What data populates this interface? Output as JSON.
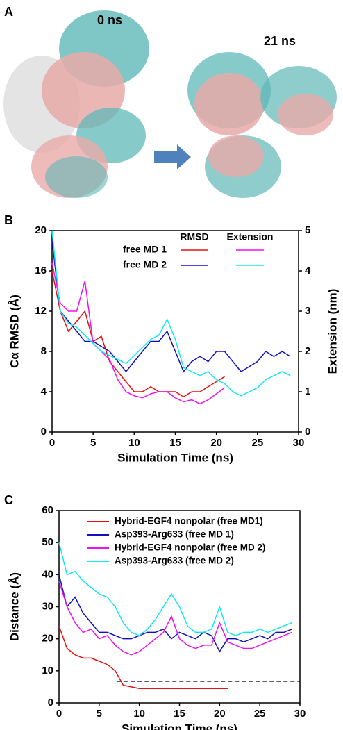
{
  "panel_a": {
    "label": "A",
    "left_caption": "0 ns",
    "right_caption": "21 ns"
  },
  "chart_data": [
    {
      "type": "line",
      "panel_label": "B",
      "x_label": "Simulation Time (ns)",
      "y_label": "Cα RMSD (Å)",
      "y2_label": "Extension (nm)",
      "xlim": [
        0,
        30
      ],
      "xticks": [
        0,
        5,
        10,
        15,
        20,
        25,
        30
      ],
      "ylim": [
        0,
        20
      ],
      "yticks": [
        0,
        4,
        8,
        12,
        16,
        20
      ],
      "y2lim": [
        0,
        5
      ],
      "y2ticks": [
        0,
        1,
        2,
        3,
        4,
        5
      ],
      "legend": {
        "columns": [
          "RMSD",
          "Extension"
        ],
        "rows": [
          "free MD 1",
          "free MD 2"
        ]
      },
      "series": [
        {
          "color": "#e81010",
          "x": [
            0,
            1,
            2,
            3,
            4,
            5,
            6,
            7,
            8,
            9,
            10,
            11,
            12,
            13,
            14,
            15,
            16,
            17,
            18,
            19,
            20,
            21
          ],
          "values": [
            16,
            12,
            10,
            11,
            12,
            9,
            9.5,
            7,
            6,
            5,
            4,
            4,
            4.5,
            4,
            4,
            4,
            3.5,
            4,
            4,
            4.5,
            5,
            5.5
          ]
        },
        {
          "color": "#1010c0",
          "x": [
            0,
            1,
            2,
            3,
            4,
            5,
            6,
            7,
            8,
            9,
            10,
            11,
            12,
            13,
            14,
            15,
            16,
            17,
            18,
            19,
            20,
            21,
            22,
            23,
            24,
            25,
            26,
            27,
            28,
            29
          ],
          "values": [
            19,
            12,
            11,
            10,
            9,
            9,
            8.5,
            8,
            7,
            6,
            7,
            8,
            9,
            9,
            10,
            8,
            6,
            7,
            7.5,
            7,
            8,
            8,
            7,
            6,
            6.5,
            7,
            8,
            7.5,
            8,
            7.5
          ]
        },
        {
          "color": "#f010f0",
          "axis": "y2",
          "x": [
            0,
            1,
            2,
            3,
            4,
            5,
            6,
            7,
            8,
            9,
            10,
            11,
            12,
            13,
            14,
            15,
            16,
            17,
            18,
            19,
            20,
            21
          ],
          "values": [
            4.2,
            3.2,
            3.0,
            3.0,
            3.75,
            2.2,
            2.0,
            1.8,
            1.3,
            1.0,
            0.9,
            0.85,
            0.95,
            1.0,
            1.0,
            0.85,
            0.75,
            0.8,
            0.7,
            0.8,
            0.95,
            1.1
          ]
        },
        {
          "color": "#10e8f0",
          "axis": "y2",
          "x": [
            0,
            1,
            2,
            3,
            4,
            5,
            6,
            7,
            8,
            9,
            10,
            11,
            12,
            13,
            14,
            15,
            16,
            17,
            18,
            19,
            20,
            21,
            22,
            23,
            24,
            25,
            26,
            27,
            28,
            29
          ],
          "values": [
            5.0,
            3.0,
            2.7,
            2.6,
            2.4,
            2.2,
            2.0,
            1.9,
            1.8,
            1.7,
            1.9,
            2.1,
            2.3,
            2.4,
            2.8,
            2.3,
            1.6,
            1.5,
            1.4,
            1.5,
            1.3,
            1.2,
            1.0,
            0.9,
            1.0,
            1.1,
            1.3,
            1.4,
            1.5,
            1.4
          ]
        }
      ]
    },
    {
      "type": "line",
      "panel_label": "C",
      "x_label": "Simulation Time (ns)",
      "y_label": "Distance (Å)",
      "xlim": [
        0,
        30
      ],
      "xticks": [
        0,
        5,
        10,
        15,
        20,
        25,
        30
      ],
      "ylim": [
        0,
        60
      ],
      "yticks": [
        0,
        10,
        20,
        30,
        40,
        50,
        60
      ],
      "reference_lines": [
        6.7,
        4
      ],
      "series": [
        {
          "name": "Hybrid-EGF4 nonpolar (free MD1)",
          "color": "#e81010",
          "x": [
            0,
            1,
            2,
            3,
            4,
            5,
            6,
            7,
            8,
            9,
            10,
            11,
            12,
            13,
            14,
            15,
            16,
            17,
            18,
            19,
            20,
            21
          ],
          "values": [
            24,
            17,
            15,
            14,
            14,
            13,
            12,
            10,
            5.5,
            5,
            4.5,
            4.5,
            4.5,
            4.5,
            4.5,
            4.5,
            4.5,
            4.5,
            4.5,
            4.5,
            4.5,
            4.5
          ]
        },
        {
          "name": "Asp393-Arg633 (free MD 1)",
          "color": "#1010c0",
          "x": [
            0,
            1,
            2,
            3,
            4,
            5,
            6,
            7,
            8,
            9,
            10,
            11,
            12,
            13,
            14,
            15,
            16,
            17,
            18,
            19,
            20,
            21,
            22,
            23,
            24,
            25,
            26,
            27,
            28,
            29
          ],
          "values": [
            40,
            30,
            33,
            28,
            25,
            22,
            22,
            21,
            20,
            20,
            21,
            22,
            22,
            23,
            20,
            22,
            21,
            20,
            22,
            21,
            16,
            20,
            20,
            19,
            20,
            21,
            20,
            22,
            22,
            23
          ]
        },
        {
          "name": "Hybrid-EGF4 nonpolar (free MD 2)",
          "color": "#f010f0",
          "x": [
            0,
            1,
            2,
            3,
            4,
            5,
            6,
            7,
            8,
            9,
            10,
            11,
            12,
            13,
            14,
            15,
            16,
            17,
            18,
            19,
            20,
            21,
            22,
            23,
            24,
            25,
            26,
            27,
            28,
            29
          ],
          "values": [
            38,
            30,
            25,
            22,
            23,
            20,
            21,
            18,
            16,
            15,
            16,
            18,
            20,
            22,
            27,
            20,
            18,
            17,
            18,
            18,
            25,
            19,
            18,
            17,
            17,
            18,
            19,
            20,
            21,
            22
          ]
        },
        {
          "name": "Asp393-Arg633 (free MD 2)",
          "color": "#10e8f0",
          "x": [
            0,
            1,
            2,
            3,
            4,
            5,
            6,
            7,
            8,
            9,
            10,
            11,
            12,
            13,
            14,
            15,
            16,
            17,
            18,
            19,
            20,
            21,
            22,
            23,
            24,
            25,
            26,
            27,
            28,
            29
          ],
          "values": [
            50,
            40,
            41,
            38,
            36,
            34,
            33,
            30,
            25,
            22,
            21,
            23,
            26,
            30,
            34,
            30,
            24,
            22,
            22,
            23,
            30,
            22,
            21,
            22,
            22,
            23,
            22,
            23,
            24,
            25
          ]
        }
      ]
    }
  ]
}
